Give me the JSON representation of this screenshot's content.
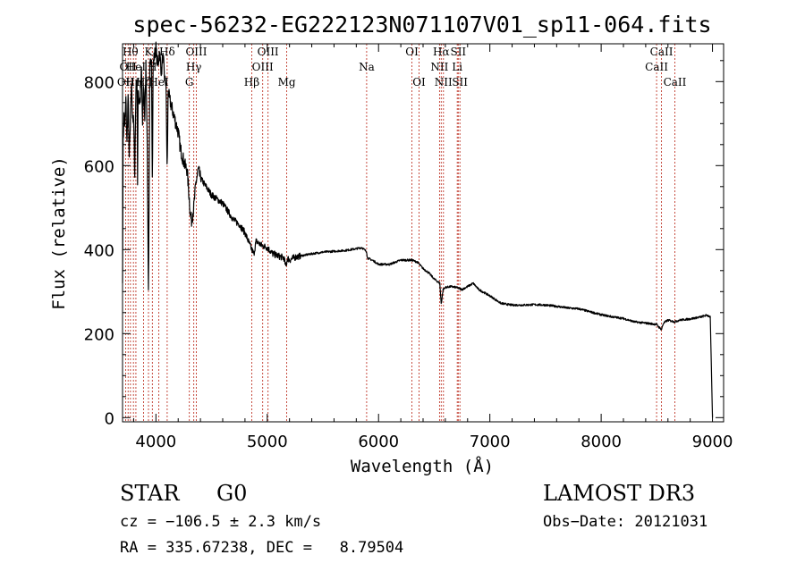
{
  "chart_data": {
    "type": "line",
    "title": "spec-56232-EG222123N071107V01_sp11-064.fits",
    "xlabel": "Wavelength (Å)",
    "ylabel": "Flux (relative)",
    "xlim": [
      3700,
      9100
    ],
    "ylim": [
      -10,
      890
    ],
    "x_ticks": [
      4000,
      5000,
      6000,
      7000,
      8000,
      9000
    ],
    "y_ticks": [
      0,
      200,
      400,
      600,
      800
    ],
    "x_tick_labels": [
      "4000",
      "5000",
      "6000",
      "7000",
      "8000",
      "9000"
    ],
    "y_tick_labels": [
      "0",
      "200",
      "400",
      "600",
      "800"
    ],
    "spectrum": {
      "x": [
        3700,
        3705,
        3712,
        3720,
        3730,
        3740,
        3750,
        3760,
        3770,
        3780,
        3790,
        3800,
        3810,
        3820,
        3830,
        3835,
        3840,
        3850,
        3860,
        3870,
        3880,
        3889,
        3900,
        3910,
        3920,
        3933,
        3945,
        3960,
        3968,
        3975,
        3985,
        4000,
        4010,
        4020,
        4030,
        4040,
        4050,
        4060,
        4070,
        4080,
        4090,
        4101,
        4110,
        4120,
        4140,
        4160,
        4180,
        4200,
        4220,
        4240,
        4260,
        4280,
        4300,
        4310,
        4320,
        4340,
        4360,
        4380,
        4400,
        4450,
        4500,
        4550,
        4600,
        4650,
        4700,
        4750,
        4800,
        4830,
        4861,
        4880,
        4900,
        4950,
        5000,
        5050,
        5100,
        5150,
        5167,
        5175,
        5183,
        5200,
        5250,
        5300,
        5400,
        5500,
        5600,
        5700,
        5800,
        5850,
        5893,
        5900,
        5950,
        6000,
        6100,
        6200,
        6300,
        6350,
        6400,
        6450,
        6500,
        6550,
        6563,
        6580,
        6600,
        6650,
        6700,
        6750,
        6800,
        6850,
        6900,
        7000,
        7100,
        7200,
        7300,
        7400,
        7500,
        7600,
        7700,
        7800,
        7900,
        8000,
        8100,
        8200,
        8300,
        8400,
        8498,
        8520,
        8542,
        8560,
        8600,
        8662,
        8700,
        8800,
        8900,
        8950,
        8980,
        9000
      ],
      "y": [
        320,
        650,
        720,
        690,
        760,
        650,
        770,
        620,
        690,
        800,
        720,
        700,
        580,
        780,
        810,
        540,
        790,
        750,
        760,
        830,
        690,
        800,
        710,
        840,
        700,
        290,
        830,
        860,
        550,
        840,
        860,
        880,
        850,
        840,
        870,
        850,
        820,
        860,
        840,
        800,
        800,
        580,
        780,
        760,
        740,
        720,
        700,
        680,
        640,
        620,
        600,
        590,
        520,
        480,
        470,
        500,
        560,
        590,
        570,
        550,
        530,
        520,
        510,
        490,
        470,
        460,
        440,
        420,
        400,
        390,
        420,
        410,
        405,
        390,
        385,
        380,
        360,
        370,
        380,
        375,
        382,
        385,
        390,
        394,
        396,
        398,
        402,
        405,
        395,
        380,
        374,
        365,
        365,
        375,
        375,
        370,
        355,
        345,
        330,
        320,
        270,
        305,
        310,
        312,
        310,
        305,
        312,
        320,
        305,
        290,
        272,
        268,
        268,
        269,
        268,
        265,
        261,
        259,
        252,
        245,
        240,
        236,
        228,
        225,
        222,
        215,
        210,
        225,
        232,
        228,
        232,
        235,
        240,
        244,
        240,
        0
      ]
    },
    "lines": [
      {
        "x": 3728,
        "label": "OII",
        "row": 2
      },
      {
        "x": 3750,
        "label": "OII",
        "row": 1
      },
      {
        "x": 3771,
        "label": "Hθ",
        "row": 0
      },
      {
        "x": 3798,
        "label": "Hη",
        "row": 2
      },
      {
        "x": 3820,
        "label": "HeI",
        "row": 1
      },
      {
        "x": 3889,
        "label": "Hζ",
        "row": 2
      },
      {
        "x": 3933,
        "label": "K",
        "row": 0
      },
      {
        "x": 3968,
        "label": "H",
        "row": 1
      },
      {
        "x": 4026,
        "label": "HeI",
        "row": 2
      },
      {
        "x": 4101,
        "label": "Hδ",
        "row": 0
      },
      {
        "x": 4300,
        "label": "G",
        "row": 2
      },
      {
        "x": 4340,
        "label": "Hγ",
        "row": 1
      },
      {
        "x": 4363,
        "label": "OIII",
        "row": 0
      },
      {
        "x": 4861,
        "label": "Hβ",
        "row": 2
      },
      {
        "x": 4959,
        "label": "OIII",
        "row": 1
      },
      {
        "x": 5007,
        "label": "OIII",
        "row": 0
      },
      {
        "x": 5175,
        "label": "Mg",
        "row": 2
      },
      {
        "x": 5893,
        "label": "Na",
        "row": 1
      },
      {
        "x": 6300,
        "label": "OI",
        "row": 0
      },
      {
        "x": 6364,
        "label": "OI",
        "row": 2
      },
      {
        "x": 6548,
        "label": "NII",
        "row": 1
      },
      {
        "x": 6563,
        "label": "Hα",
        "row": 0
      },
      {
        "x": 6583,
        "label": "NII",
        "row": 2
      },
      {
        "x": 6707,
        "label": "Li",
        "row": 1
      },
      {
        "x": 6716,
        "label": "SII",
        "row": 0
      },
      {
        "x": 6731,
        "label": "SII",
        "row": 2
      },
      {
        "x": 8498,
        "label": "CaII",
        "row": 1
      },
      {
        "x": 8542,
        "label": "CaII",
        "row": 0
      },
      {
        "x": 8662,
        "label": "CaII",
        "row": 2
      }
    ]
  },
  "info": {
    "object_class": "STAR",
    "subclass": "G0",
    "survey": "LAMOST DR3",
    "redshift": "cz = −106.5 ± 2.3 km/s",
    "obs_date": "Obs−Date: 20121031",
    "coords": "RA = 335.67238, DEC =   8.79504"
  },
  "colors": {
    "line_marker": "#c0392b",
    "spectrum": "#000000",
    "axis": "#000000"
  }
}
